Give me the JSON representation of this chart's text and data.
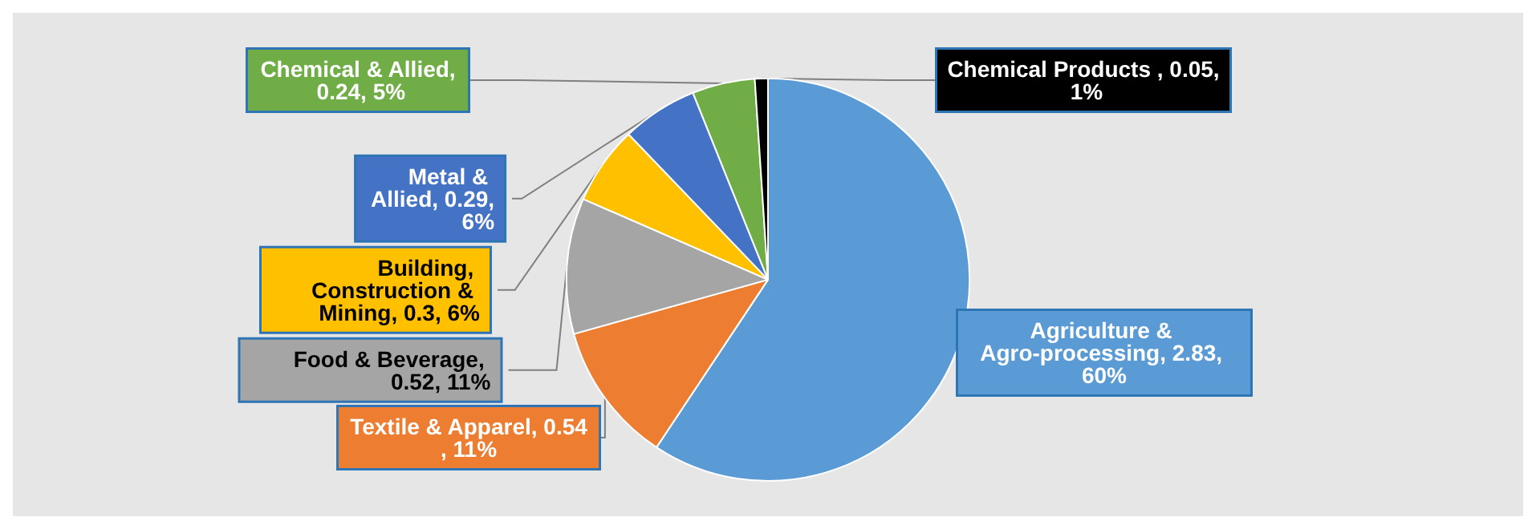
{
  "chart_data": {
    "type": "pie",
    "categories": [
      "Agriculture & Agro-processing",
      "Textile & Apparel",
      "Food & Beverage",
      "Building, Construction & Mining",
      "Metal & Allied",
      "Chemical & Allied",
      "Chemical Products"
    ],
    "values": [
      2.83,
      0.54,
      0.52,
      0.3,
      0.29,
      0.24,
      0.05
    ],
    "value_labels": [
      ", 2.83, 60%",
      ", 0.54, 11%",
      ", 0.52, 11%",
      ", 0.3, 6%",
      ", 0.29, 6%",
      ", 0.24, 5%",
      " , 0.05, 1%"
    ],
    "colors": [
      "#5b9bd5",
      "#ed7d31",
      "#a5a5a5",
      "#ffc000",
      "#4472c4",
      "#70ad47",
      "#000000"
    ],
    "legend": false
  }
}
